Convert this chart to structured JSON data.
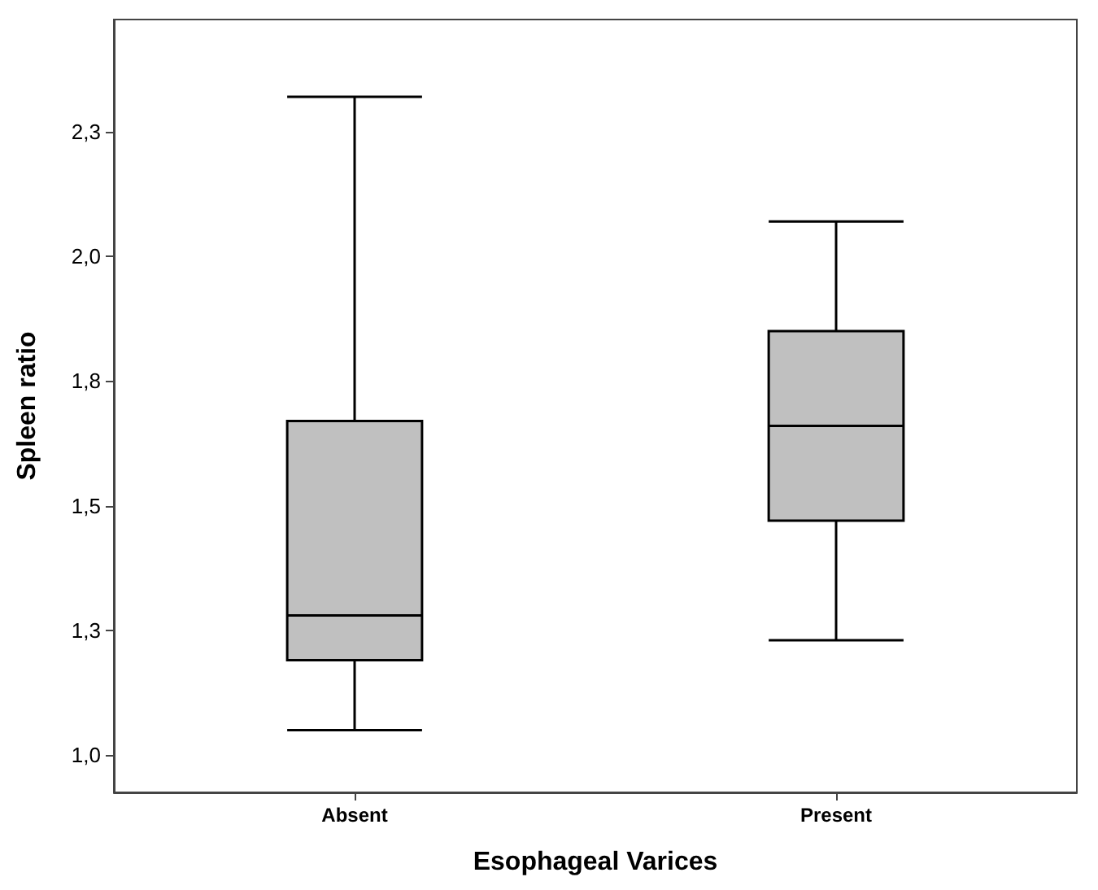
{
  "chart_data": {
    "type": "box",
    "xlabel": "Esophageal Varices",
    "ylabel": "Spleen ratio",
    "categories": [
      "Absent",
      "Present"
    ],
    "color": "#c0c0c0",
    "boxes": [
      {
        "low": 1.05,
        "q1": 1.19,
        "median": 1.28,
        "q3": 1.67,
        "high": 2.32
      },
      {
        "low": 1.23,
        "q1": 1.47,
        "median": 1.66,
        "q3": 1.85,
        "high": 2.07
      }
    ],
    "ylim": [
      0.925,
      2.475
    ],
    "yticks": [
      {
        "value": 1.0,
        "label": "1,0"
      },
      {
        "value": 1.25,
        "label": "1,3"
      },
      {
        "value": 1.5,
        "label": "1,5"
      },
      {
        "value": 1.75,
        "label": "1,8"
      },
      {
        "value": 2.0,
        "label": "2,0"
      },
      {
        "value": 2.25,
        "label": "2,3"
      }
    ]
  }
}
